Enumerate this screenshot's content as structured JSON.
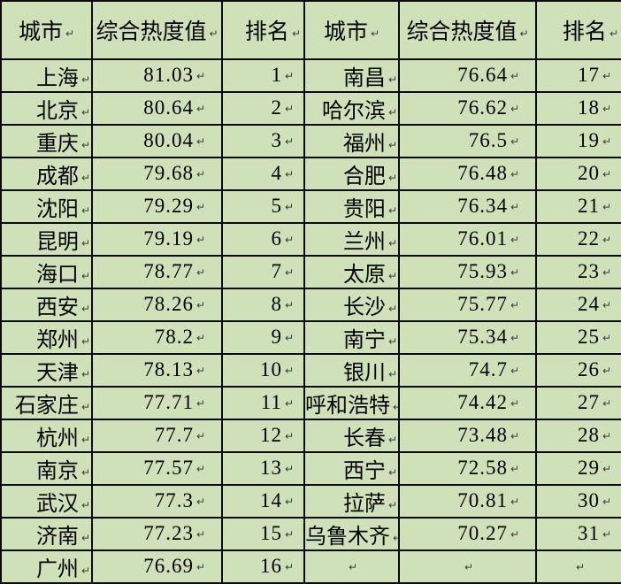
{
  "document": {
    "description_label": "city-comprehensive-heat-ranking-table"
  },
  "marks": {
    "paragraph_mark": "↵"
  },
  "colors": {
    "cell_background": "#cfe1b9",
    "grid_border": "#0a0a0a",
    "text": "#000000",
    "paragraph_mark": "#3d3d3d"
  },
  "table": {
    "headers": [
      "城市",
      "综合热度值",
      "排名",
      "城市",
      "综合热度值",
      "排名"
    ],
    "rows": [
      [
        "上海",
        "81.03",
        "1",
        "南昌",
        "76.64",
        "17"
      ],
      [
        "北京",
        "80.64",
        "2",
        "哈尔滨",
        "76.62",
        "18"
      ],
      [
        "重庆",
        "80.04",
        "3",
        "福州",
        "76.5",
        "19"
      ],
      [
        "成都",
        "79.68",
        "4",
        "合肥",
        "76.48",
        "20"
      ],
      [
        "沈阳",
        "79.29",
        "5",
        "贵阳",
        "76.34",
        "21"
      ],
      [
        "昆明",
        "79.19",
        "6",
        "兰州",
        "76.01",
        "22"
      ],
      [
        "海口",
        "78.77",
        "7",
        "太原",
        "75.93",
        "23"
      ],
      [
        "西安",
        "78.26",
        "8",
        "长沙",
        "75.77",
        "24"
      ],
      [
        "郑州",
        "78.2",
        "9",
        "南宁",
        "75.34",
        "25"
      ],
      [
        "天津",
        "78.13",
        "10",
        "银川",
        "74.7",
        "26"
      ],
      [
        "石家庄",
        "77.71",
        "11",
        "呼和浩特",
        "74.42",
        "27"
      ],
      [
        "杭州",
        "77.7",
        "12",
        "长春",
        "73.48",
        "28"
      ],
      [
        "南京",
        "77.57",
        "13",
        "西宁",
        "72.58",
        "29"
      ],
      [
        "武汉",
        "77.3",
        "14",
        "拉萨",
        "70.81",
        "30"
      ],
      [
        "济南",
        "77.23",
        "15",
        "乌鲁木齐",
        "70.27",
        "31"
      ],
      [
        "广州",
        "76.69",
        "16",
        "",
        "",
        ""
      ]
    ]
  }
}
